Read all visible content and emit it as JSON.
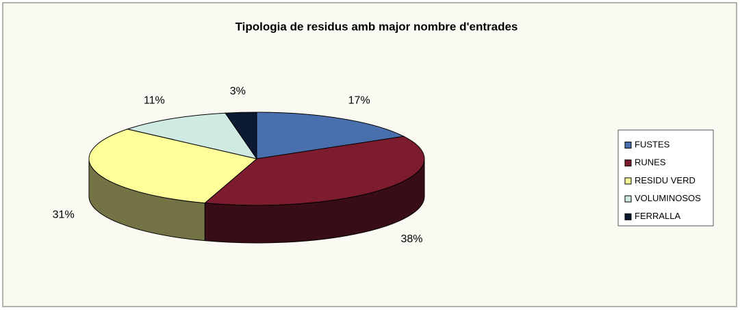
{
  "chart_data": {
    "type": "pie",
    "title": "Tipologia de residus amb major nombre d'entrades",
    "categories": [
      "FUSTES",
      "RUNES",
      "RESIDU VERD",
      "VOLUMINOSOS",
      "FERRALLA"
    ],
    "values": [
      17,
      38,
      31,
      11,
      3
    ],
    "value_labels": [
      "17%",
      "38%",
      "31%",
      "11%",
      "3%"
    ],
    "colors": [
      "#4a6fad",
      "#7d1c2e",
      "#ffff99",
      "#cfe9e3",
      "#0b1933"
    ],
    "legend": "right"
  }
}
